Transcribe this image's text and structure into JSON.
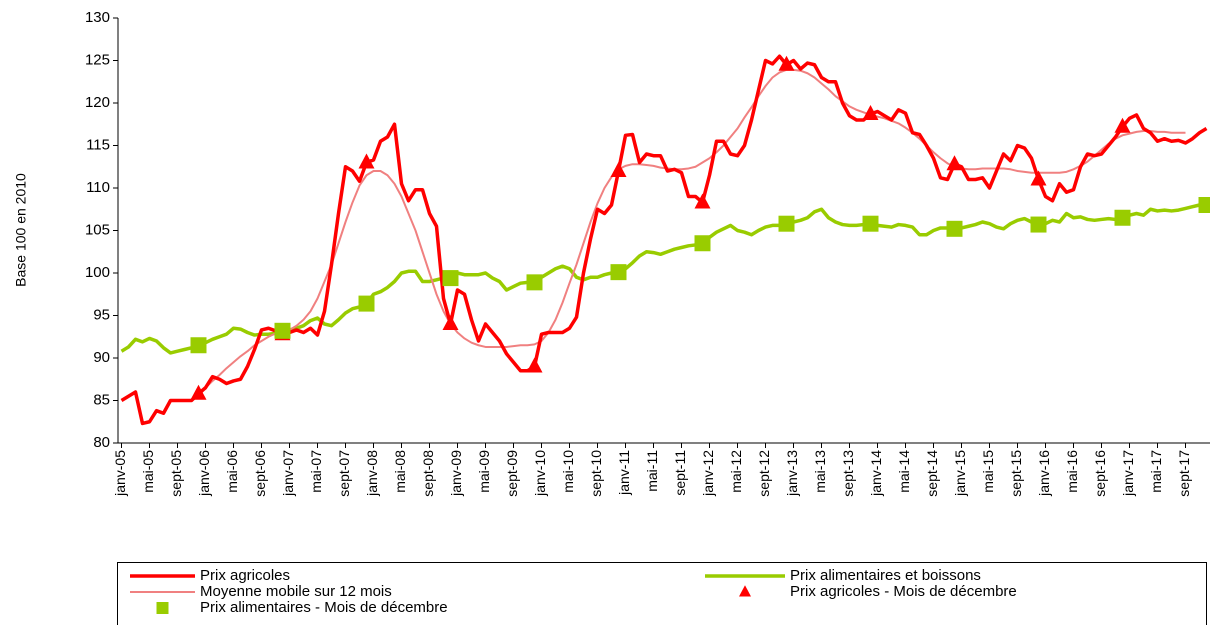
{
  "chart_data": {
    "type": "line",
    "y_label": "Base 100 en 2010",
    "ylim": [
      80,
      130
    ],
    "yticks": [
      80,
      85,
      90,
      95,
      100,
      105,
      110,
      115,
      120,
      125,
      130
    ],
    "legend": "bottom",
    "categories": [
      "janv-05",
      null,
      null,
      null,
      "mai-05",
      null,
      null,
      null,
      "sept-05",
      null,
      null,
      null,
      "janv-06",
      null,
      null,
      null,
      "mai-06",
      null,
      null,
      null,
      "sept-06",
      null,
      null,
      null,
      "janv-07",
      null,
      null,
      null,
      "mai-07",
      null,
      null,
      null,
      "sept-07",
      null,
      null,
      null,
      "janv-08",
      null,
      null,
      null,
      "mai-08",
      null,
      null,
      null,
      "sept-08",
      null,
      null,
      null,
      "janv-09",
      null,
      null,
      null,
      "mai-09",
      null,
      null,
      null,
      "sept-09",
      null,
      null,
      null,
      "janv-10",
      null,
      null,
      null,
      "mai-10",
      null,
      null,
      null,
      "sept-10",
      null,
      null,
      null,
      "janv-11",
      null,
      null,
      null,
      "mai-11",
      null,
      null,
      null,
      "sept-11",
      null,
      null,
      null,
      "janv-12",
      null,
      null,
      null,
      "mai-12",
      null,
      null,
      null,
      "sept-12",
      null,
      null,
      null,
      "janv-13",
      null,
      null,
      null,
      "mai-13",
      null,
      null,
      null,
      "sept-13",
      null,
      null,
      null,
      "janv-14",
      null,
      null,
      null,
      "mai-14",
      null,
      null,
      null,
      "sept-14",
      null,
      null,
      null,
      "janv-15",
      null,
      null,
      null,
      "mai-15",
      null,
      null,
      null,
      "sept-15",
      null,
      null,
      null,
      "janv-16",
      null,
      null,
      null,
      "mai-16",
      null,
      null,
      null,
      "sept-16",
      null,
      null,
      null,
      "janv-17",
      null,
      null,
      null,
      "mai-17",
      null,
      null,
      null,
      "sept-17",
      null,
      null,
      null
    ],
    "series": [
      {
        "name": "Prix agricoles",
        "color": "#ff0000",
        "line_width": 3.5,
        "values": [
          85,
          85.5,
          86,
          82.3,
          82.5,
          83.8,
          83.5,
          85,
          85,
          85,
          85,
          85.8,
          86.5,
          87.8,
          87.5,
          87,
          87.3,
          87.5,
          89,
          91,
          93.3,
          93.5,
          93.2,
          92.8,
          93,
          93.3,
          93,
          93.5,
          92.7,
          95.5,
          101,
          107,
          112.5,
          112,
          110.8,
          113,
          113.3,
          115.5,
          116,
          117.5,
          110.5,
          108.5,
          109.8,
          109.8,
          107,
          105.5,
          97,
          94,
          98,
          97.5,
          94.5,
          92,
          94,
          93,
          92,
          90.5,
          89.5,
          88.5,
          88.5,
          89,
          92.8,
          93,
          93,
          93,
          93.5,
          94.8,
          100,
          104,
          107.5,
          107,
          108,
          112,
          116.2,
          116.3,
          113,
          114,
          113.8,
          113.8,
          112,
          112.2,
          111.8,
          109,
          109,
          108.3,
          111.5,
          115.5,
          115.5,
          114,
          113.8,
          115,
          118,
          121.5,
          125,
          124.6,
          125.5,
          124.5,
          125,
          124,
          124.7,
          124.5,
          123,
          122.5,
          122.5,
          120,
          118.5,
          118,
          118,
          118.7,
          119,
          118.5,
          118,
          119.2,
          118.8,
          116.5,
          116.3,
          115,
          113.5,
          111.2,
          111,
          112.8,
          112.5,
          111,
          111,
          111.2,
          110,
          112,
          114,
          113.2,
          115,
          114.7,
          113.5,
          111,
          109,
          108.5,
          110.5,
          109.5,
          109.8,
          112.5,
          114,
          113.8,
          114,
          115,
          116,
          117.2,
          118.2,
          118.6,
          117,
          116.5,
          115.5,
          115.8,
          115.5,
          115.6,
          115.3,
          115.8,
          116.5,
          117
        ]
      },
      {
        "name": "Prix alimentaires et boissons",
        "color": "#99cc00",
        "line_width": 3.5,
        "values": [
          90.8,
          91.3,
          92.2,
          91.9,
          92.3,
          92,
          91.2,
          90.6,
          90.8,
          91,
          91.2,
          91.5,
          91.8,
          92.2,
          92.5,
          92.8,
          93.5,
          93.4,
          93,
          92.7,
          92.8,
          92.8,
          92.9,
          93.2,
          93.3,
          93.5,
          93.8,
          94.4,
          94.7,
          94,
          93.8,
          94.5,
          95.3,
          95.8,
          96,
          96.4,
          97.5,
          97.8,
          98.3,
          99,
          100,
          100.2,
          100.2,
          99,
          99,
          99.2,
          99.4,
          99.4,
          100,
          99.8,
          99.8,
          99.8,
          100,
          99.4,
          99,
          98,
          98.4,
          98.8,
          98.9,
          98.9,
          99.5,
          100,
          100.5,
          100.8,
          100.5,
          99.5,
          99.2,
          99.5,
          99.5,
          99.8,
          100,
          100.1,
          100.5,
          101.2,
          102,
          102.5,
          102.4,
          102.2,
          102.5,
          102.8,
          103,
          103.2,
          103.3,
          103.5,
          104.2,
          104.8,
          105.2,
          105.6,
          105,
          104.8,
          104.5,
          105,
          105.4,
          105.6,
          105.6,
          105.8,
          106,
          106.2,
          106.5,
          107.2,
          107.5,
          106.5,
          106,
          105.7,
          105.6,
          105.6,
          105.7,
          105.8,
          105.6,
          105.5,
          105.4,
          105.7,
          105.6,
          105.4,
          104.5,
          104.5,
          105,
          105.3,
          105.3,
          105.2,
          105.3,
          105.5,
          105.7,
          106,
          105.8,
          105.4,
          105.2,
          105.8,
          106.2,
          106.4,
          106,
          105.7,
          105.8,
          106.2,
          106,
          107,
          106.5,
          106.6,
          106.3,
          106.2,
          106.3,
          106.4,
          106.3,
          106.5,
          106.8,
          107,
          106.8,
          107.5,
          107.3,
          107.4,
          107.3,
          107.4,
          107.6,
          107.8,
          108,
          108
        ]
      },
      {
        "name": "Moyenne mobile sur 12 mois",
        "color": "#f08080",
        "line_width": 2,
        "values": [
          null,
          null,
          null,
          null,
          null,
          null,
          null,
          null,
          null,
          null,
          null,
          85.5,
          86.5,
          87.3,
          88,
          88.8,
          89.5,
          90.2,
          90.8,
          91.5,
          92,
          92.5,
          92.9,
          93,
          93.3,
          93.8,
          94.5,
          95.5,
          97,
          99,
          101,
          103.5,
          106,
          108.3,
          110.3,
          111.5,
          112,
          112,
          111.5,
          110.5,
          109,
          107,
          105,
          102.5,
          100,
          97.5,
          95.5,
          94,
          93,
          92.3,
          91.8,
          91.5,
          91.3,
          91.3,
          91.3,
          91.3,
          91.4,
          91.5,
          91.5,
          91.6,
          92,
          93,
          94.5,
          96.5,
          98.8,
          101,
          103.5,
          106,
          108.2,
          110,
          111.3,
          112.2,
          112.6,
          112.8,
          112.8,
          112.7,
          112.6,
          112.4,
          112.3,
          112.2,
          112.2,
          112.3,
          112.5,
          113,
          113.5,
          114.2,
          115,
          116,
          117,
          118.3,
          119.5,
          120.8,
          122,
          123,
          123.6,
          123.9,
          123.9,
          123.8,
          123.5,
          123,
          122.3,
          121.6,
          120.8,
          120.2,
          119.6,
          119.2,
          118.9,
          118.6,
          118.4,
          118.2,
          117.9,
          117.6,
          117.1,
          116.5,
          115.8,
          115,
          114.2,
          113.5,
          112.9,
          112.5,
          112.3,
          112.2,
          112.2,
          112.3,
          112.3,
          112.3,
          112.3,
          112.2,
          112,
          111.9,
          111.8,
          111.8,
          111.8,
          111.8,
          111.8,
          111.9,
          112.2,
          112.6,
          113.1,
          113.8,
          114.5,
          115.2,
          115.8,
          116.2,
          116.4,
          116.6,
          116.7,
          116.7,
          116.6,
          116.6,
          116.5,
          116.5,
          116.5,
          null,
          null,
          null
        ]
      },
      {
        "name": "Prix agricoles - Mois de décembre",
        "color": "#ff0000",
        "marker": "triangle",
        "values": [
          null,
          null,
          null,
          null,
          null,
          null,
          null,
          null,
          null,
          null,
          null,
          85.8,
          null,
          null,
          null,
          null,
          null,
          null,
          null,
          null,
          null,
          null,
          null,
          92.8,
          null,
          null,
          null,
          null,
          null,
          null,
          null,
          null,
          null,
          null,
          null,
          113,
          null,
          null,
          null,
          null,
          null,
          null,
          null,
          null,
          null,
          null,
          null,
          94,
          null,
          null,
          null,
          null,
          null,
          null,
          null,
          null,
          null,
          null,
          null,
          89,
          null,
          null,
          null,
          null,
          null,
          null,
          null,
          null,
          null,
          null,
          null,
          112,
          null,
          null,
          null,
          null,
          null,
          null,
          null,
          null,
          null,
          null,
          null,
          108.3,
          null,
          null,
          null,
          null,
          null,
          null,
          null,
          null,
          null,
          null,
          null,
          124.5,
          null,
          null,
          null,
          null,
          null,
          null,
          null,
          null,
          null,
          null,
          null,
          118.7,
          null,
          null,
          null,
          null,
          null,
          null,
          null,
          null,
          null,
          null,
          null,
          112.8,
          null,
          null,
          null,
          null,
          null,
          null,
          null,
          null,
          null,
          null,
          null,
          111,
          null,
          null,
          null,
          null,
          null,
          null,
          null,
          null,
          null,
          null,
          null,
          117.2,
          null,
          null,
          null,
          null,
          null,
          null,
          null,
          null,
          null,
          null,
          null,
          null
        ]
      },
      {
        "name": "Prix alimentaires - Mois de décembre",
        "color": "#99cc00",
        "marker": "square",
        "values": [
          null,
          null,
          null,
          null,
          null,
          null,
          null,
          null,
          null,
          null,
          null,
          91.5,
          null,
          null,
          null,
          null,
          null,
          null,
          null,
          null,
          null,
          null,
          null,
          93.2,
          null,
          null,
          null,
          null,
          null,
          null,
          null,
          null,
          null,
          null,
          null,
          96.4,
          null,
          null,
          null,
          null,
          null,
          null,
          null,
          null,
          null,
          null,
          null,
          99.4,
          null,
          null,
          null,
          null,
          null,
          null,
          null,
          null,
          null,
          null,
          null,
          98.9,
          null,
          null,
          null,
          null,
          null,
          null,
          null,
          null,
          null,
          null,
          null,
          100.1,
          null,
          null,
          null,
          null,
          null,
          null,
          null,
          null,
          null,
          null,
          null,
          103.5,
          null,
          null,
          null,
          null,
          null,
          null,
          null,
          null,
          null,
          null,
          null,
          105.8,
          null,
          null,
          null,
          null,
          null,
          null,
          null,
          null,
          null,
          null,
          null,
          105.8,
          null,
          null,
          null,
          null,
          null,
          null,
          null,
          null,
          null,
          null,
          null,
          105.2,
          null,
          null,
          null,
          null,
          null,
          null,
          null,
          null,
          null,
          null,
          null,
          105.7,
          null,
          null,
          null,
          null,
          null,
          null,
          null,
          null,
          null,
          null,
          null,
          106.5,
          null,
          null,
          null,
          null,
          null,
          null,
          null,
          null,
          null,
          null,
          null,
          108
        ]
      }
    ]
  }
}
